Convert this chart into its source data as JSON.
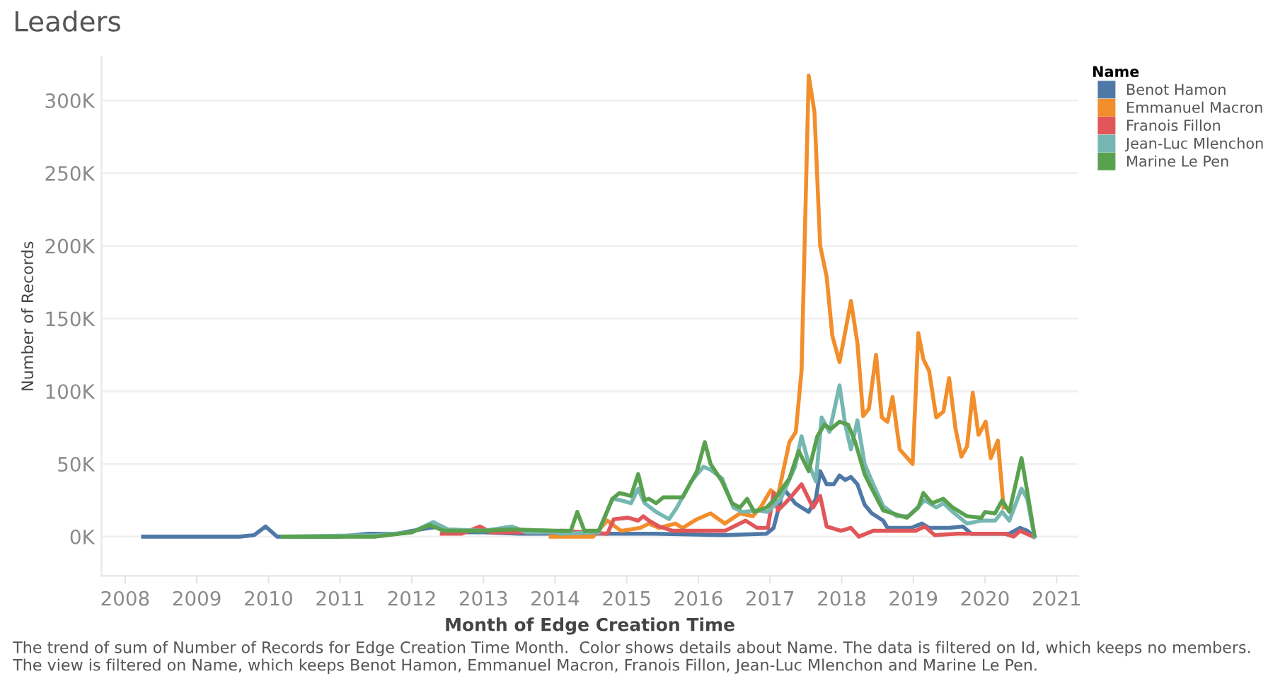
{
  "chart_data": {
    "type": "line",
    "title": "Leaders",
    "xlabel": "Month of Edge Creation Time",
    "ylabel": "Number of Records",
    "legend_title": "Name",
    "legend": "top right",
    "grid": "y",
    "marker": "none",
    "line_style": "solid",
    "xlim": [
      2007.67,
      2021.3
    ],
    "xticks": [
      2008,
      2009,
      2010,
      2011,
      2012,
      2013,
      2014,
      2015,
      2016,
      2017,
      2018,
      2019,
      2020,
      2021
    ],
    "ylim": [
      -27000,
      330000
    ],
    "yticks": [
      {
        "value": 0,
        "label": "0K"
      },
      {
        "value": 50000,
        "label": "50K"
      },
      {
        "value": 100000,
        "label": "100K"
      },
      {
        "value": 150000,
        "label": "150K"
      },
      {
        "value": 200000,
        "label": "200K"
      },
      {
        "value": 250000,
        "label": "250K"
      },
      {
        "value": 300000,
        "label": "300K"
      }
    ],
    "series": [
      {
        "name": "Benot Hamon",
        "color": "#4e79a7",
        "x": [
          2008.25,
          2009.6,
          2009.8,
          2009.96,
          2010.12,
          2011.0,
          2011.4,
          2011.8,
          2012.0,
          2012.25,
          2012.42,
          2012.55,
          2013.0,
          2013.5,
          2014.0,
          2014.08,
          2015.39,
          2016.37,
          2016.95,
          2017.05,
          2017.19,
          2017.35,
          2017.44,
          2017.54,
          2017.64,
          2017.7,
          2017.79,
          2017.89,
          2017.97,
          2018.05,
          2018.13,
          2018.22,
          2018.32,
          2018.42,
          2018.58,
          2018.64,
          2018.97,
          2019.12,
          2019.22,
          2019.5,
          2019.69,
          2019.81,
          2020.34,
          2020.49,
          2020.59,
          2020.69
        ],
        "values": [
          0,
          0,
          1000,
          7000,
          0,
          0,
          2000,
          2000,
          4000,
          6000,
          7000,
          3000,
          3000,
          2000,
          2000,
          2000,
          2000,
          1000,
          2000,
          6000,
          33000,
          23000,
          20000,
          17000,
          26000,
          45000,
          36000,
          36000,
          42000,
          39000,
          41000,
          36000,
          22000,
          16000,
          11000,
          6000,
          6000,
          9000,
          6000,
          6000,
          7000,
          2000,
          2000,
          6000,
          4000,
          0
        ]
      },
      {
        "name": "Emmanuel Macron",
        "color": "#f28e2b",
        "x": [
          2013.94,
          2014.08,
          2014.53,
          2014.73,
          2014.92,
          2015.19,
          2015.31,
          2015.45,
          2015.68,
          2015.78,
          2015.98,
          2016.17,
          2016.37,
          2016.58,
          2016.76,
          2016.88,
          2017.01,
          2017.11,
          2017.27,
          2017.36,
          2017.44,
          2017.54,
          2017.62,
          2017.7,
          2017.79,
          2017.87,
          2017.97,
          2018.13,
          2018.22,
          2018.3,
          2018.38,
          2018.48,
          2018.56,
          2018.64,
          2018.71,
          2018.81,
          2018.99,
          2019.07,
          2019.14,
          2019.22,
          2019.32,
          2019.42,
          2019.5,
          2019.59,
          2019.67,
          2019.75,
          2019.83,
          2019.91,
          2020.01,
          2020.08,
          2020.18,
          2020.26
        ],
        "values": [
          0,
          0,
          0,
          11000,
          4000,
          6000,
          9000,
          6000,
          9000,
          6000,
          12000,
          16000,
          9000,
          16000,
          14000,
          21000,
          32000,
          28000,
          65000,
          72000,
          114000,
          317000,
          292000,
          200000,
          179000,
          138000,
          120000,
          162000,
          133000,
          83000,
          88000,
          125000,
          82000,
          79000,
          96000,
          60000,
          50000,
          140000,
          122000,
          114000,
          82000,
          86000,
          109000,
          74000,
          55000,
          62000,
          99000,
          70000,
          79000,
          54000,
          66000,
          20000
        ]
      },
      {
        "name": "Franois Fillon",
        "color": "#e15759",
        "x": [
          2012.42,
          2012.7,
          2012.95,
          2013.1,
          2013.5,
          2014.0,
          2014.08,
          2014.73,
          2014.82,
          2015.02,
          2015.16,
          2015.23,
          2015.31,
          2015.45,
          2015.64,
          2015.98,
          2016.37,
          2016.66,
          2016.82,
          2016.97,
          2017.05,
          2017.11,
          2017.25,
          2017.44,
          2017.6,
          2017.7,
          2017.79,
          2017.99,
          2018.13,
          2018.24,
          2018.44,
          2018.77,
          2019.03,
          2019.16,
          2019.3,
          2019.61,
          2019.95,
          2020.28,
          2020.4,
          2020.49,
          2020.67
        ],
        "values": [
          2000,
          2000,
          7000,
          3000,
          3000,
          3000,
          4000,
          2000,
          12000,
          13000,
          11000,
          14000,
          11000,
          7000,
          4000,
          4000,
          4000,
          11000,
          6000,
          6000,
          30000,
          18000,
          25000,
          36000,
          20000,
          28000,
          7000,
          4000,
          6000,
          0,
          4000,
          4000,
          4000,
          7000,
          1000,
          2000,
          2000,
          2000,
          0,
          4000,
          0
        ]
      },
      {
        "name": "Jean-Luc Mlenchon",
        "color": "#76b7b2",
        "x": [
          2010.2,
          2011.5,
          2012.0,
          2012.3,
          2012.5,
          2013.0,
          2013.4,
          2013.6,
          2014.0,
          2014.08,
          2014.61,
          2014.8,
          2014.92,
          2015.06,
          2015.16,
          2015.25,
          2015.41,
          2015.59,
          2015.7,
          2015.9,
          2016.07,
          2016.17,
          2016.33,
          2016.49,
          2016.62,
          2016.82,
          2016.97,
          2017.15,
          2017.35,
          2017.44,
          2017.54,
          2017.64,
          2017.72,
          2017.83,
          2017.97,
          2018.05,
          2018.13,
          2018.22,
          2018.32,
          2018.44,
          2018.58,
          2018.77,
          2018.93,
          2019.16,
          2019.32,
          2019.42,
          2019.55,
          2019.75,
          2019.95,
          2020.14,
          2020.24,
          2020.34,
          2020.51,
          2020.59,
          2020.69
        ],
        "values": [
          0,
          1000,
          3000,
          10000,
          5000,
          4000,
          7000,
          3000,
          3000,
          2000,
          3000,
          26000,
          25000,
          23000,
          33000,
          23000,
          17000,
          12000,
          20000,
          38000,
          48000,
          46000,
          40000,
          20000,
          17000,
          18000,
          17000,
          26000,
          48000,
          69000,
          50000,
          38000,
          82000,
          72000,
          104000,
          77000,
          60000,
          80000,
          50000,
          36000,
          21000,
          14000,
          14000,
          25000,
          20000,
          23000,
          17000,
          9000,
          11000,
          11000,
          17000,
          11000,
          33000,
          26000,
          0
        ]
      },
      {
        "name": "Marine Le Pen",
        "color": "#59a14f",
        "x": [
          2010.2,
          2011.5,
          2012.0,
          2012.25,
          2012.45,
          2013.0,
          2013.4,
          2014.0,
          2014.08,
          2014.22,
          2014.31,
          2014.41,
          2014.61,
          2014.8,
          2014.9,
          2015.06,
          2015.16,
          2015.25,
          2015.31,
          2015.41,
          2015.51,
          2015.78,
          2015.98,
          2016.09,
          2016.17,
          2016.33,
          2016.47,
          2016.58,
          2016.68,
          2016.78,
          2016.95,
          2017.07,
          2017.27,
          2017.4,
          2017.54,
          2017.66,
          2017.76,
          2017.85,
          2017.97,
          2018.09,
          2018.19,
          2018.32,
          2018.42,
          2018.58,
          2018.71,
          2018.91,
          2019.07,
          2019.14,
          2019.26,
          2019.42,
          2019.55,
          2019.75,
          2019.95,
          2020.0,
          2020.14,
          2020.24,
          2020.34,
          2020.51,
          2020.59,
          2020.69
        ],
        "values": [
          0,
          0,
          3000,
          8000,
          4000,
          4000,
          5000,
          4000,
          4000,
          4000,
          17000,
          4000,
          4000,
          26000,
          30000,
          28000,
          43000,
          25000,
          26000,
          23000,
          27000,
          27000,
          45000,
          65000,
          50000,
          38000,
          23000,
          20000,
          26000,
          17000,
          20000,
          26000,
          40000,
          59000,
          45000,
          69000,
          77000,
          74000,
          79000,
          77000,
          65000,
          43000,
          33000,
          18000,
          16000,
          13000,
          20000,
          30000,
          23000,
          26000,
          20000,
          14000,
          13000,
          17000,
          16000,
          25000,
          17000,
          54000,
          31000,
          1000
        ]
      }
    ],
    "annotations": [
      "The trend of sum of Number of Records for Edge Creation Time Month.  Color shows details about Name. The data is filtered on Id, which keeps no members. The view is filtered on Name, which keeps Benot Hamon, Emmanuel Macron, Franois Fillon, Jean-Luc Mlenchon and Marine Le Pen."
    ]
  }
}
